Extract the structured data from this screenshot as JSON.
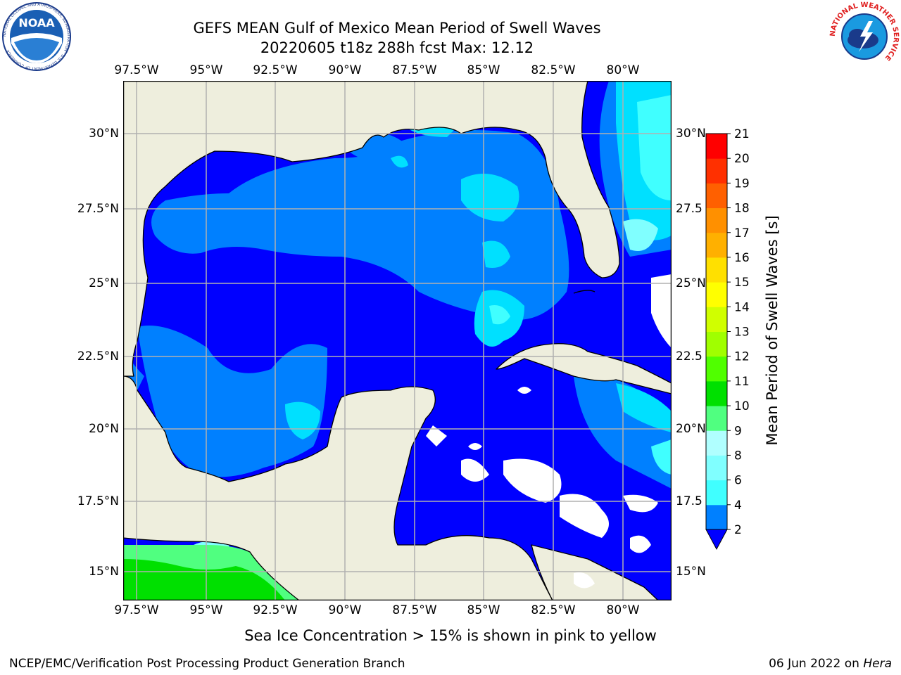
{
  "title": "GEFS MEAN Gulf of Mexico Mean Period of Swell Waves",
  "subtitle": "20220605 t18z 288h fcst   Max: 12.12",
  "map": {
    "lon_ticks": [
      "97.5°W",
      "95°W",
      "92.5°W",
      "90°W",
      "87.5°W",
      "85°W",
      "82.5°W",
      "80°W"
    ],
    "lat_ticks_left": [
      "30°N",
      "27.5°N",
      "25°N",
      "22.5°N",
      "20°N",
      "17.5°N",
      "15°N"
    ],
    "lat_ticks_right": [
      "30°N",
      "27.5",
      "25°N",
      "22.5",
      "20°N",
      "17.5",
      "15°N"
    ],
    "land_color": "#eeeedd",
    "gridline_color": "#b0b0b0"
  },
  "colorbar": {
    "label": "Mean Period of Swell Waves [s]",
    "levels": [
      "2",
      "4",
      "6",
      "8",
      "9",
      "10",
      "11",
      "12",
      "13",
      "14",
      "15",
      "16",
      "17",
      "18",
      "19",
      "20",
      "21"
    ],
    "colors": [
      "#0080ff",
      "#00e0ff",
      "#40ffff",
      "#80ffff",
      "#b0ffff",
      "#50ff80",
      "#00e000",
      "#50ff00",
      "#a0ff00",
      "#d0ff00",
      "#ffff00",
      "#ffe000",
      "#ffb000",
      "#ff9000",
      "#ff6000",
      "#ff3000",
      "#ff0000"
    ],
    "under_color": "#0000ff"
  },
  "note": "Sea Ice Concentration > 15% is shown in pink to yellow",
  "footer_left": "NCEP/EMC/Verification Post Processing Product Generation Branch",
  "footer_date": "06 Jun 2022 on",
  "footer_host": "Hera",
  "logos": {
    "noaa_text": "NOAA",
    "noaa_ring": "NATIONAL OCEANIC AND ATMOSPHERIC ADMINISTRATION · U.S. DEPARTMENT OF COMMERCE",
    "nws_ring": "NATIONAL WEATHER SERVICE"
  }
}
